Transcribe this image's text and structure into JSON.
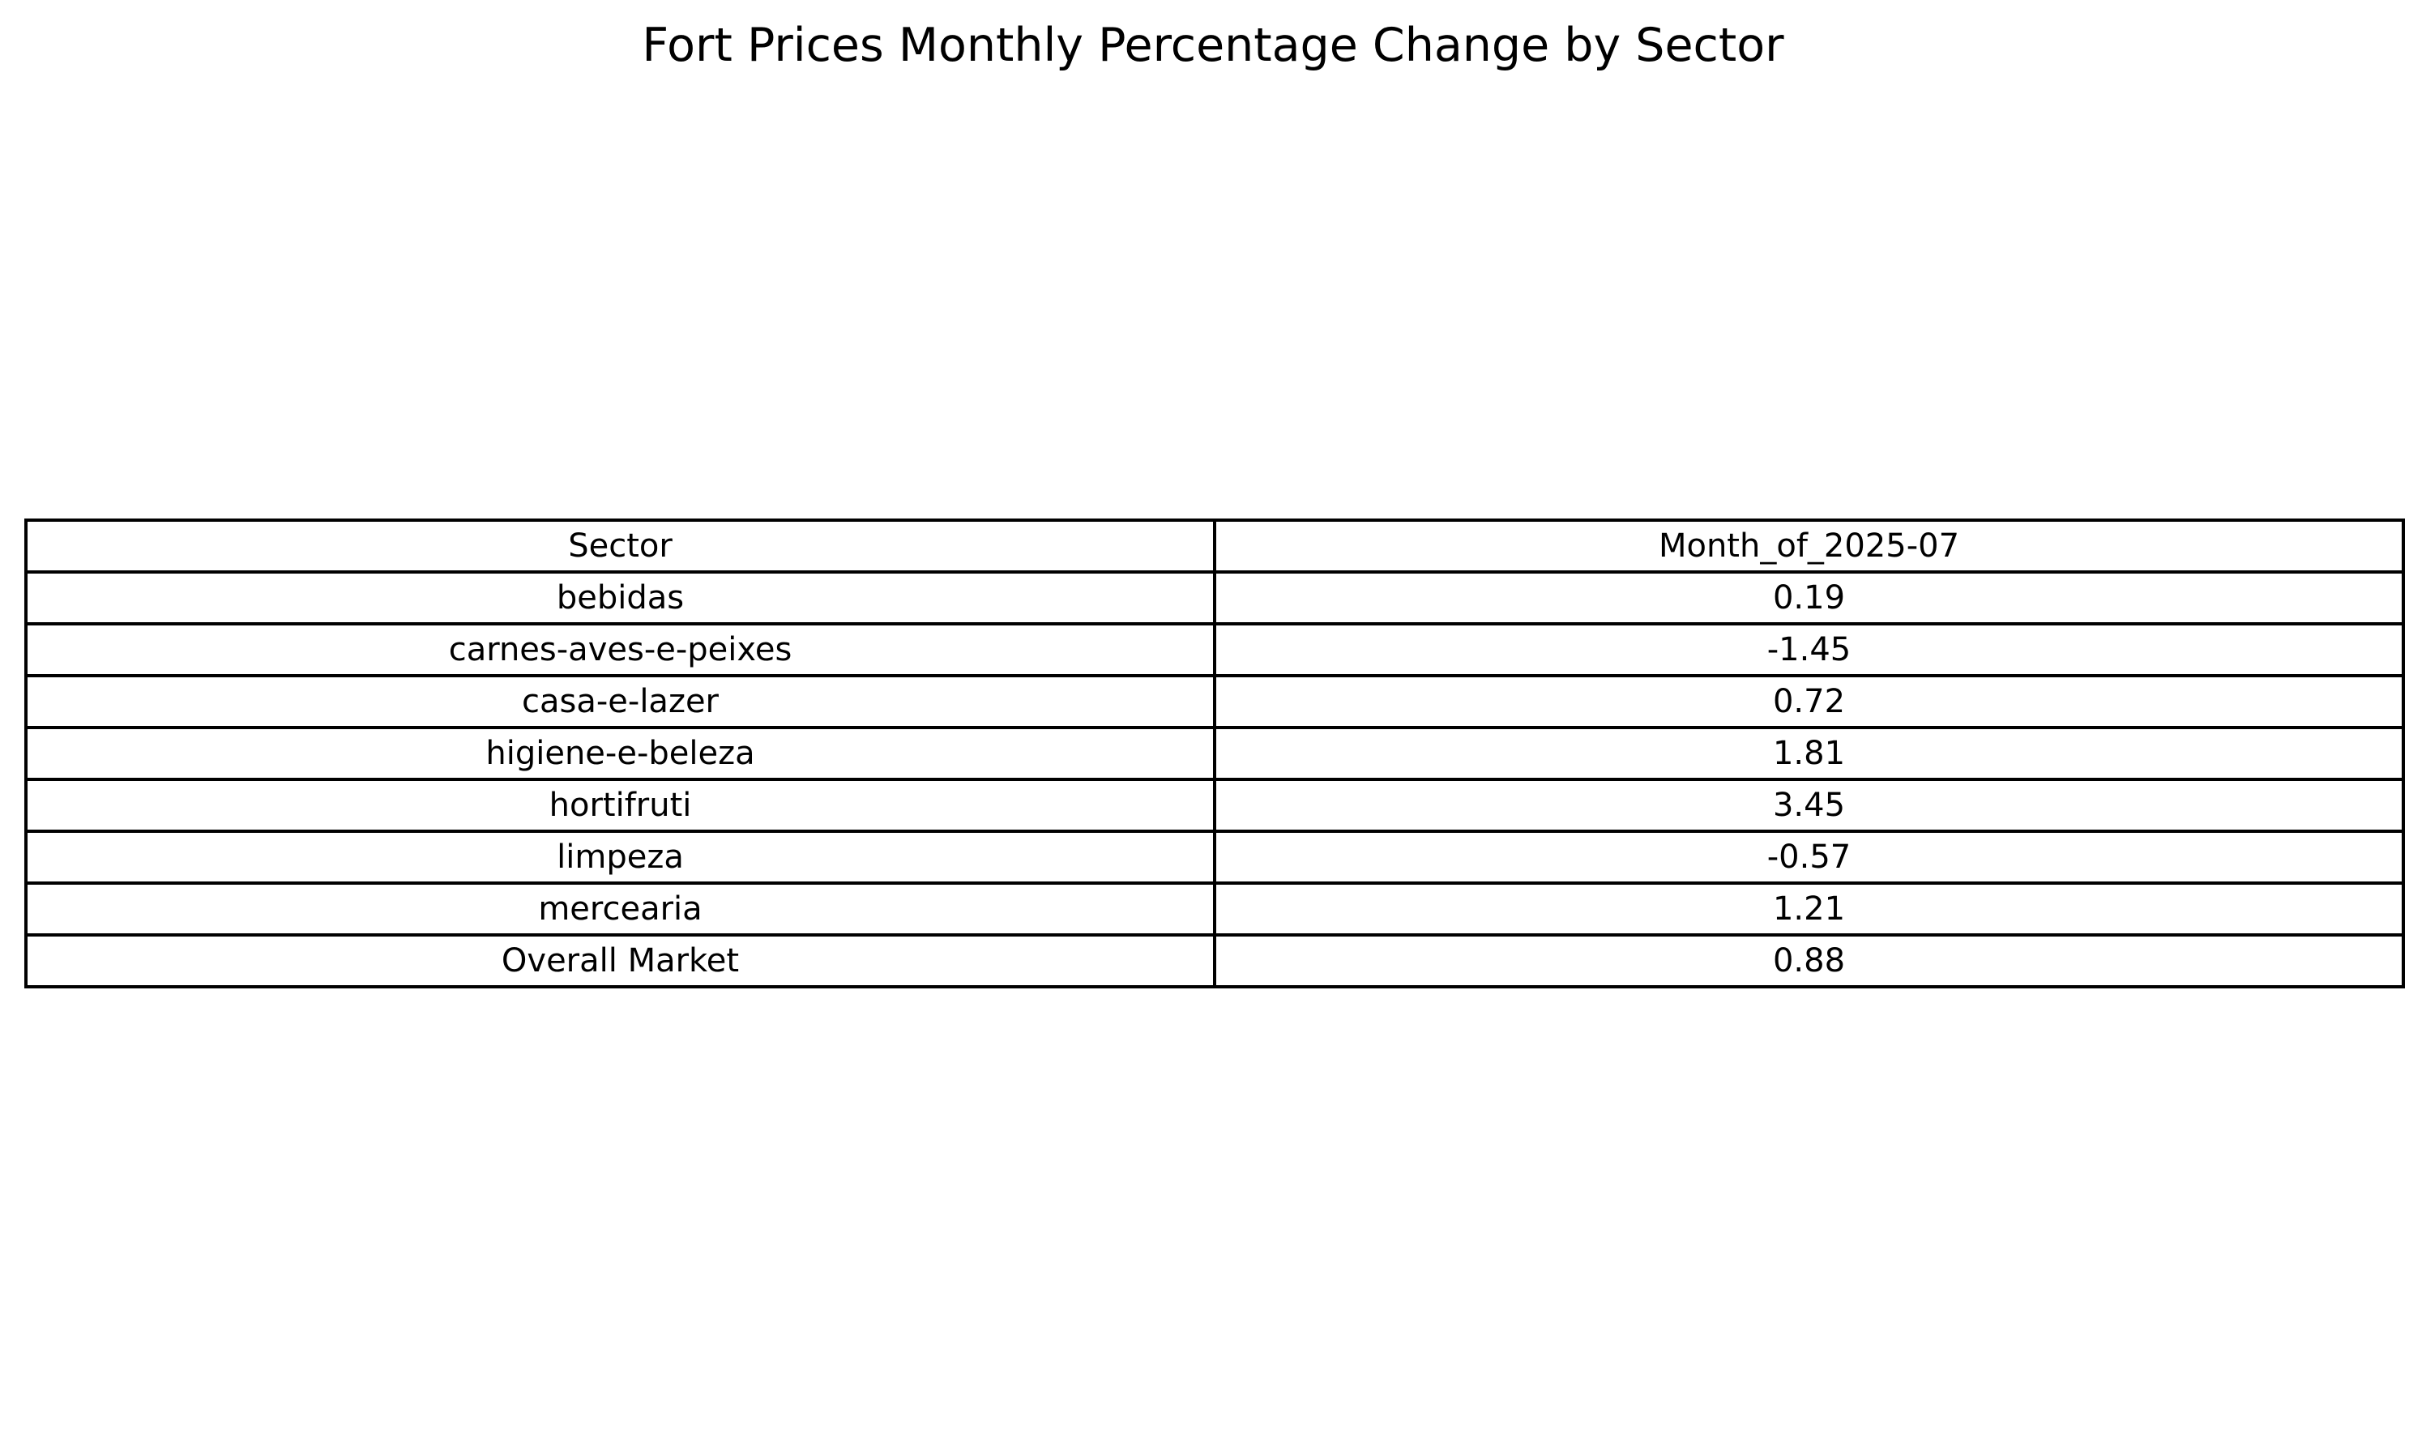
{
  "chart_data": {
    "type": "table",
    "title": "Fort Prices Monthly Percentage Change by Sector",
    "columns": [
      "Sector",
      "Month_of_2025-07"
    ],
    "rows": [
      [
        "bebidas",
        "0.19"
      ],
      [
        "carnes-aves-e-peixes",
        "-1.45"
      ],
      [
        "casa-e-lazer",
        "0.72"
      ],
      [
        "higiene-e-beleza",
        "1.81"
      ],
      [
        "hortifruti",
        "3.45"
      ],
      [
        "limpeza",
        "-0.57"
      ],
      [
        "mercearia",
        "1.21"
      ],
      [
        "Overall Market",
        "0.88"
      ]
    ]
  }
}
